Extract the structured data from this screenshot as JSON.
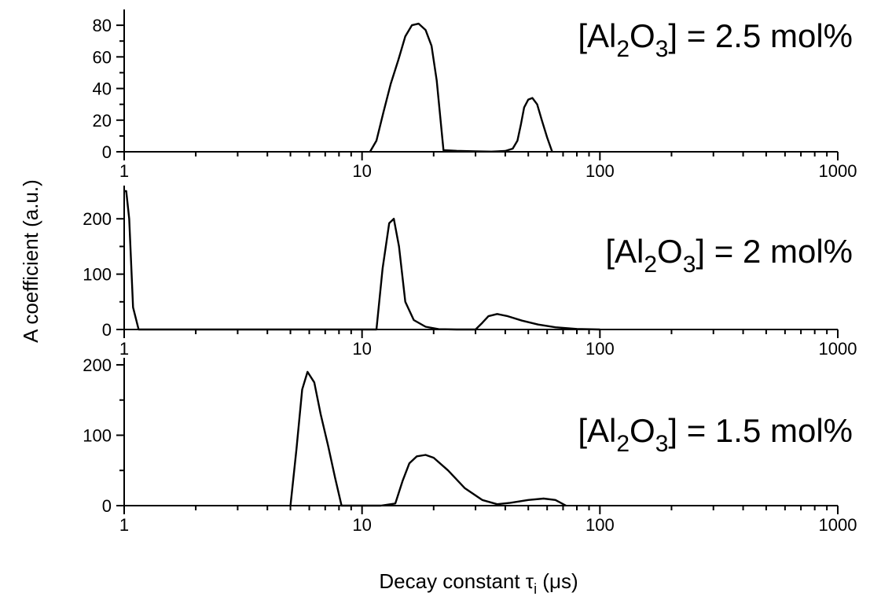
{
  "chart_data": [
    {
      "type": "line",
      "x_scale": "log",
      "xlim": [
        1,
        1000
      ],
      "ylim": [
        0,
        90
      ],
      "yticks": [
        0,
        20,
        40,
        60,
        80
      ],
      "xticks": [
        1,
        10,
        100,
        1000
      ],
      "tick_labels": [
        "1",
        "10",
        "100",
        "1000"
      ],
      "annotation": {
        "pre": "[Al",
        "sub1": "2",
        "mid": "O",
        "sub2": "3",
        "post": "] = 2.5 mol%"
      },
      "series": [
        {
          "x": [
            10.8,
            11.5,
            12.3,
            13.2,
            14.2,
            15.2,
            16.2,
            17.3,
            18.5,
            19.6,
            20.6,
            22.0,
            25,
            30,
            35,
            40,
            43,
            45,
            46.5,
            48,
            50,
            52,
            54.5,
            57,
            60,
            63
          ],
          "y": [
            0,
            7,
            25,
            43,
            58,
            73,
            80,
            81,
            77,
            67,
            45,
            1,
            0.6,
            0.3,
            0.1,
            0.5,
            2,
            7,
            17,
            28,
            33,
            34,
            30,
            20,
            9,
            0
          ]
        }
      ]
    },
    {
      "type": "line",
      "x_scale": "log",
      "xlim": [
        1,
        1000
      ],
      "ylim": [
        0,
        260
      ],
      "yticks": [
        0,
        100,
        200
      ],
      "xticks": [
        1,
        10,
        100,
        1000
      ],
      "tick_labels": [
        "1",
        "10",
        "100",
        "1000"
      ],
      "annotation": {
        "pre": "[Al",
        "sub1": "2",
        "mid": "O",
        "sub2": "3",
        "post": "] = 2 mol%"
      },
      "series": [
        {
          "x": [
            1.0,
            1.02,
            1.05,
            1.09,
            1.15,
            1.3,
            2,
            5,
            10,
            11.5,
            12.2,
            13.0,
            13.6,
            14.3,
            15.2,
            16.5,
            18.5,
            21,
            25,
            30,
            32,
            34,
            37,
            41,
            47,
            55,
            65,
            80,
            100
          ],
          "y": [
            250,
            250,
            200,
            40,
            0,
            0,
            0,
            0,
            0,
            0,
            110,
            192,
            200,
            150,
            50,
            17,
            5,
            0.5,
            0,
            0,
            12,
            24,
            28,
            24,
            16,
            9,
            4,
            1,
            0
          ]
        }
      ]
    },
    {
      "type": "line",
      "x_scale": "log",
      "xlim": [
        1,
        1000
      ],
      "ylim": [
        0,
        210
      ],
      "yticks": [
        0,
        100,
        200
      ],
      "xticks": [
        1,
        10,
        100,
        1000
      ],
      "tick_labels": [
        "1",
        "10",
        "100",
        "1000"
      ],
      "annotation": {
        "pre": "[Al",
        "sub1": "2",
        "mid": "O",
        "sub2": "3",
        "post": "] = 1.5 mol%"
      },
      "series": [
        {
          "x": [
            5.0,
            5.3,
            5.6,
            5.9,
            6.3,
            6.7,
            7.2,
            7.7,
            8.2,
            10,
            12,
            13.8,
            14.8,
            15.8,
            17,
            18.5,
            20,
            23,
            27,
            32,
            37,
            42,
            50,
            58,
            65,
            72
          ],
          "y": [
            0,
            80,
            165,
            190,
            175,
            130,
            85,
            40,
            0,
            0,
            0,
            3,
            35,
            60,
            70,
            72,
            68,
            50,
            25,
            8,
            2,
            4,
            8,
            10,
            8,
            0
          ]
        }
      ]
    }
  ],
  "y_axis_title": "A coefficient (a.u.)",
  "x_axis_title": {
    "main": "Decay constant τ",
    "sub": "i",
    "unit": " (μs)"
  }
}
